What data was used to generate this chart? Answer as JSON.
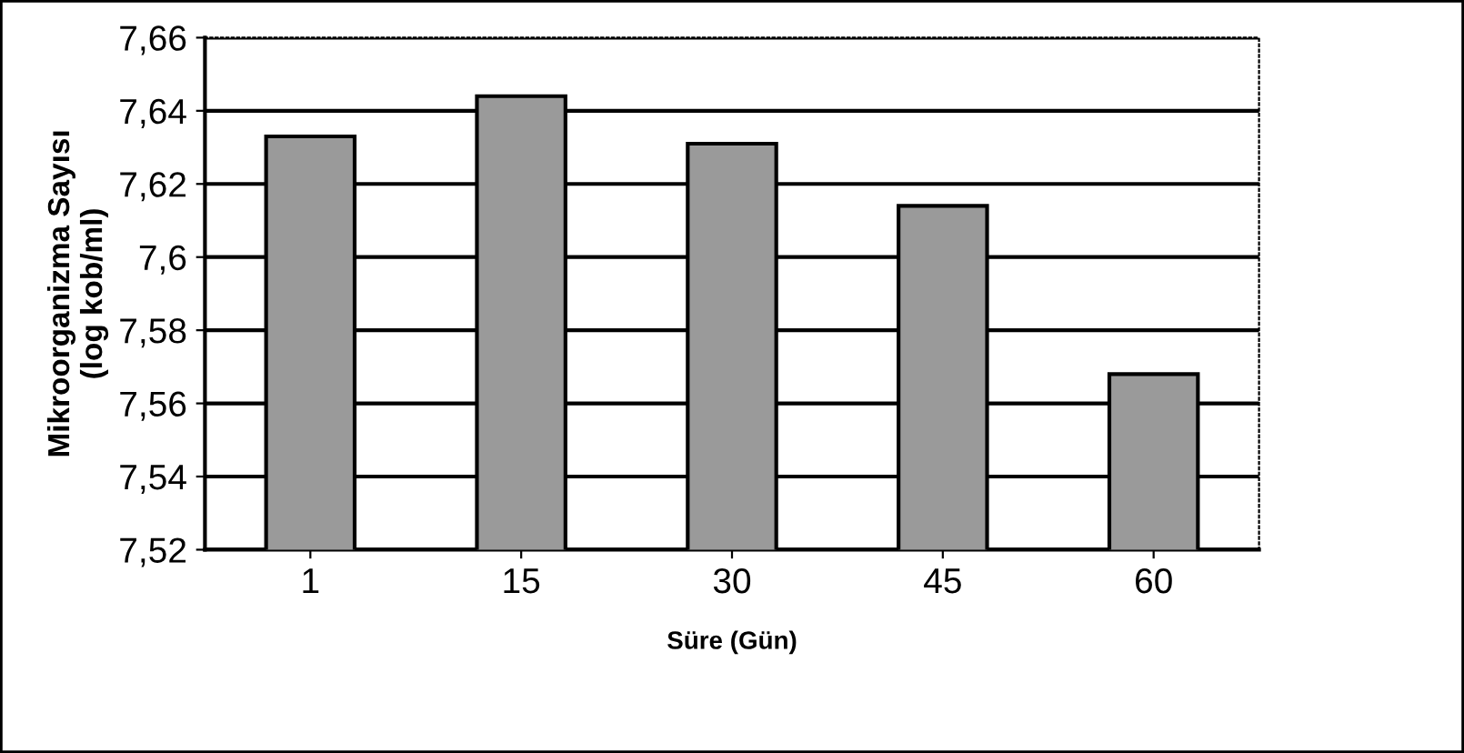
{
  "chart_data": {
    "type": "bar",
    "xlabel": "Süre (Gün)",
    "ylabel": "Mikroorganizma Sayısı\n(log kob/ml)",
    "categories": [
      "1",
      "15",
      "30",
      "45",
      "60"
    ],
    "values": [
      7.633,
      7.644,
      7.631,
      7.614,
      7.568
    ],
    "color": "#9a9a9a",
    "ylim": [
      7.52,
      7.66
    ],
    "yticks": [
      {
        "value": 7.52,
        "label": "7,52"
      },
      {
        "value": 7.54,
        "label": "7,54"
      },
      {
        "value": 7.56,
        "label": "7,56"
      },
      {
        "value": 7.58,
        "label": "7,58"
      },
      {
        "value": 7.6,
        "label": "7,6"
      },
      {
        "value": 7.62,
        "label": "7,62"
      },
      {
        "value": 7.64,
        "label": "7,64"
      },
      {
        "value": 7.66,
        "label": "7,66"
      }
    ],
    "grid": "y",
    "legend": false
  }
}
